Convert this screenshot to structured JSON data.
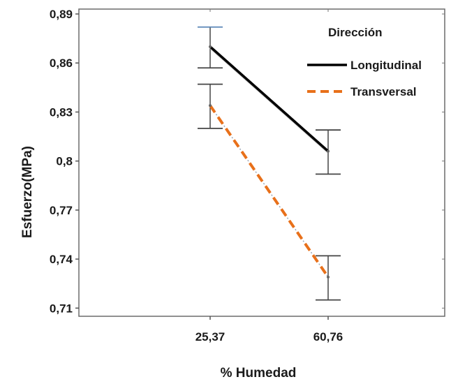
{
  "chart_data": {
    "type": "line",
    "xlabel": "% Humedad",
    "ylabel": "Esfuerzo(MPa)",
    "categories": [
      "25,37",
      "60,76"
    ],
    "ylim": [
      0.705,
      0.893
    ],
    "yticks": [
      {
        "value": 0.71,
        "label": "0,71"
      },
      {
        "value": 0.74,
        "label": "0,74"
      },
      {
        "value": 0.77,
        "label": "0,77"
      },
      {
        "value": 0.8,
        "label": "0,8"
      },
      {
        "value": 0.83,
        "label": "0,83"
      },
      {
        "value": 0.86,
        "label": "0,86"
      },
      {
        "value": 0.89,
        "label": "0,89"
      }
    ],
    "legend": {
      "title": "Dirección",
      "position": "top-right"
    },
    "grid": false,
    "series": [
      {
        "name": "Longitudinal",
        "color": "#000000",
        "style": "solid",
        "values": [
          0.87,
          0.806
        ],
        "error_low": [
          0.857,
          0.792
        ],
        "error_high": [
          0.882,
          0.819
        ]
      },
      {
        "name": "Transversal",
        "color": "#e8701a",
        "style": "dashed",
        "values": [
          0.834,
          0.729
        ],
        "error_low": [
          0.82,
          0.715
        ],
        "error_high": [
          0.847,
          0.742
        ]
      }
    ]
  }
}
